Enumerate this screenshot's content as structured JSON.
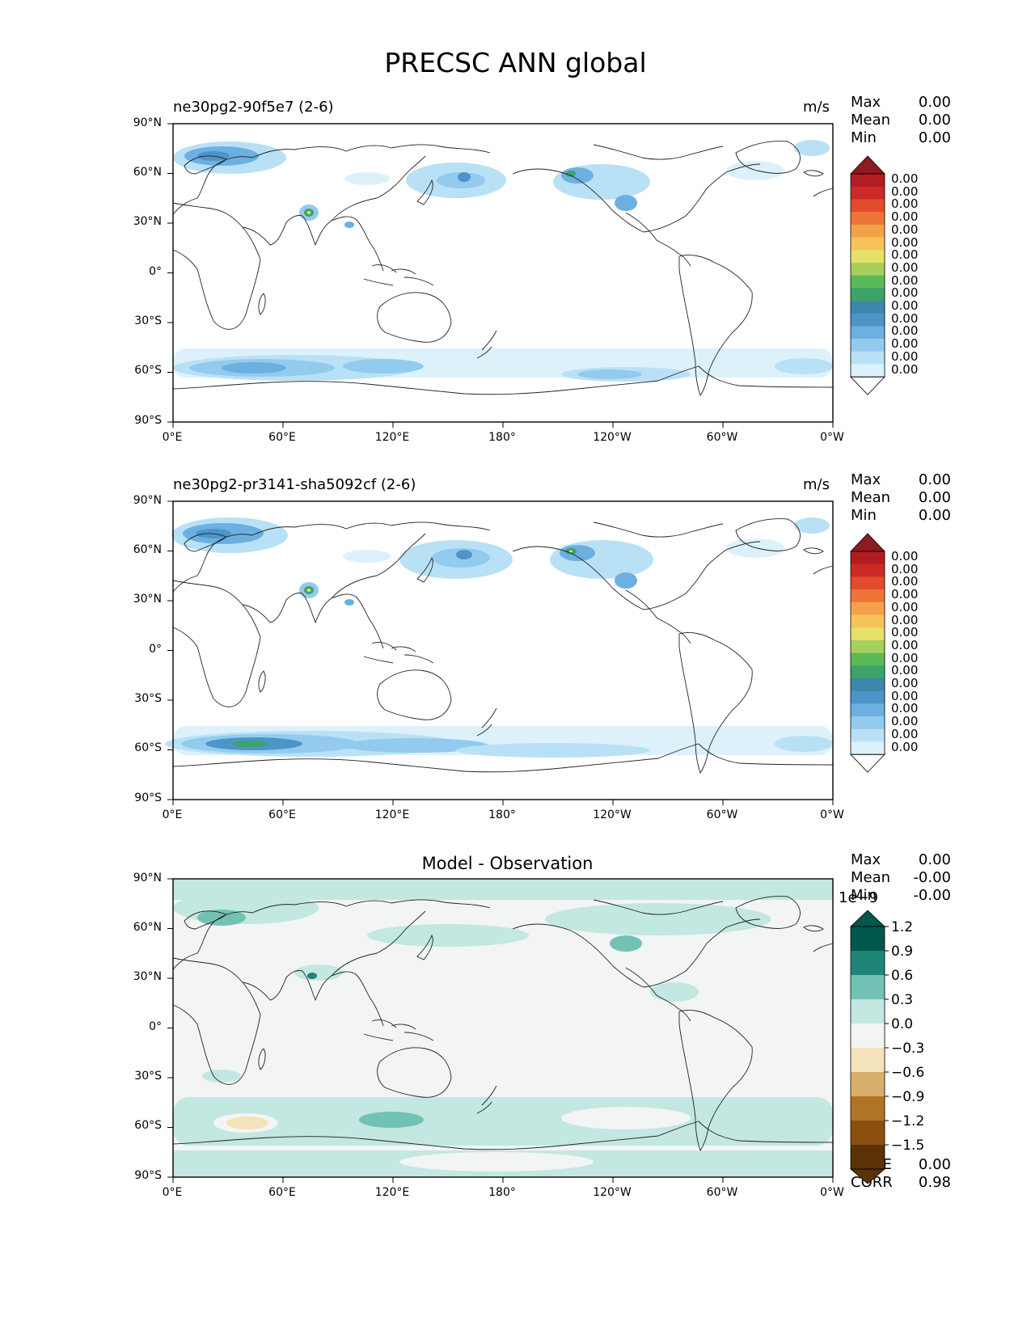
{
  "figure": {
    "title": "PRECSC ANN global"
  },
  "axes": {
    "lat_ticks": [
      "90°N",
      "60°N",
      "30°N",
      "0°",
      "30°S",
      "60°S",
      "90°S"
    ],
    "lon_ticks": [
      "0°E",
      "60°E",
      "120°E",
      "180°",
      "120°W",
      "60°W",
      "0°W"
    ]
  },
  "panels": [
    {
      "title": "ne30pg2-90f5e7 (2-6)",
      "units": "m/s",
      "stats": {
        "max_label": "Max",
        "max": "0.00",
        "mean_label": "Mean",
        "mean": "0.00",
        "min_label": "Min",
        "min": "0.00"
      },
      "colorbar_ticks": [
        "0.00",
        "0.00",
        "0.00",
        "0.00",
        "0.00",
        "0.00",
        "0.00",
        "0.00",
        "0.00",
        "0.00",
        "0.00",
        "0.00",
        "0.00",
        "0.00",
        "0.00",
        "0.00"
      ]
    },
    {
      "title": "ne30pg2-pr3141-sha5092cf (2-6)",
      "units": "m/s",
      "stats": {
        "max_label": "Max",
        "max": "0.00",
        "mean_label": "Mean",
        "mean": "0.00",
        "min_label": "Min",
        "min": "0.00"
      },
      "colorbar_ticks": [
        "0.00",
        "0.00",
        "0.00",
        "0.00",
        "0.00",
        "0.00",
        "0.00",
        "0.00",
        "0.00",
        "0.00",
        "0.00",
        "0.00",
        "0.00",
        "0.00",
        "0.00",
        "0.00"
      ]
    },
    {
      "title": "Model - Observation",
      "units": "",
      "stats": {
        "max_label": "Max",
        "max": "0.00",
        "mean_label": "Mean",
        "mean": "-0.00",
        "min_label": "Min",
        "min": "-0.00"
      },
      "colorbar_scale": "1e−9",
      "colorbar_ticks": [
        "1.2",
        "0.9",
        "0.6",
        "0.3",
        "0.0",
        "−0.3",
        "−0.6",
        "−0.9",
        "−1.2",
        "−1.5"
      ],
      "rmse_label": "RMSE",
      "rmse": "0.00",
      "corr_label": "CORR",
      "corr": "0.98"
    }
  ],
  "colors": {
    "seq": [
      "#ffffff",
      "#ddf1fb",
      "#b9e1f6",
      "#93cbef",
      "#6cb0e1",
      "#4d95c8",
      "#3f86ac",
      "#3ca36a",
      "#5cb957",
      "#a6d05c",
      "#e5e06a",
      "#f8c35a",
      "#f4a14c",
      "#ee7538",
      "#e24b2d",
      "#cd2a26",
      "#b11d24",
      "#8e1b1f"
    ],
    "div": [
      "#01574b",
      "#1f8578",
      "#72c2b4",
      "#c3e7e1",
      "#f3f4f4",
      "#f4e3ba",
      "#d6b06a",
      "#b17326",
      "#8b4f10",
      "#5b3106"
    ]
  }
}
